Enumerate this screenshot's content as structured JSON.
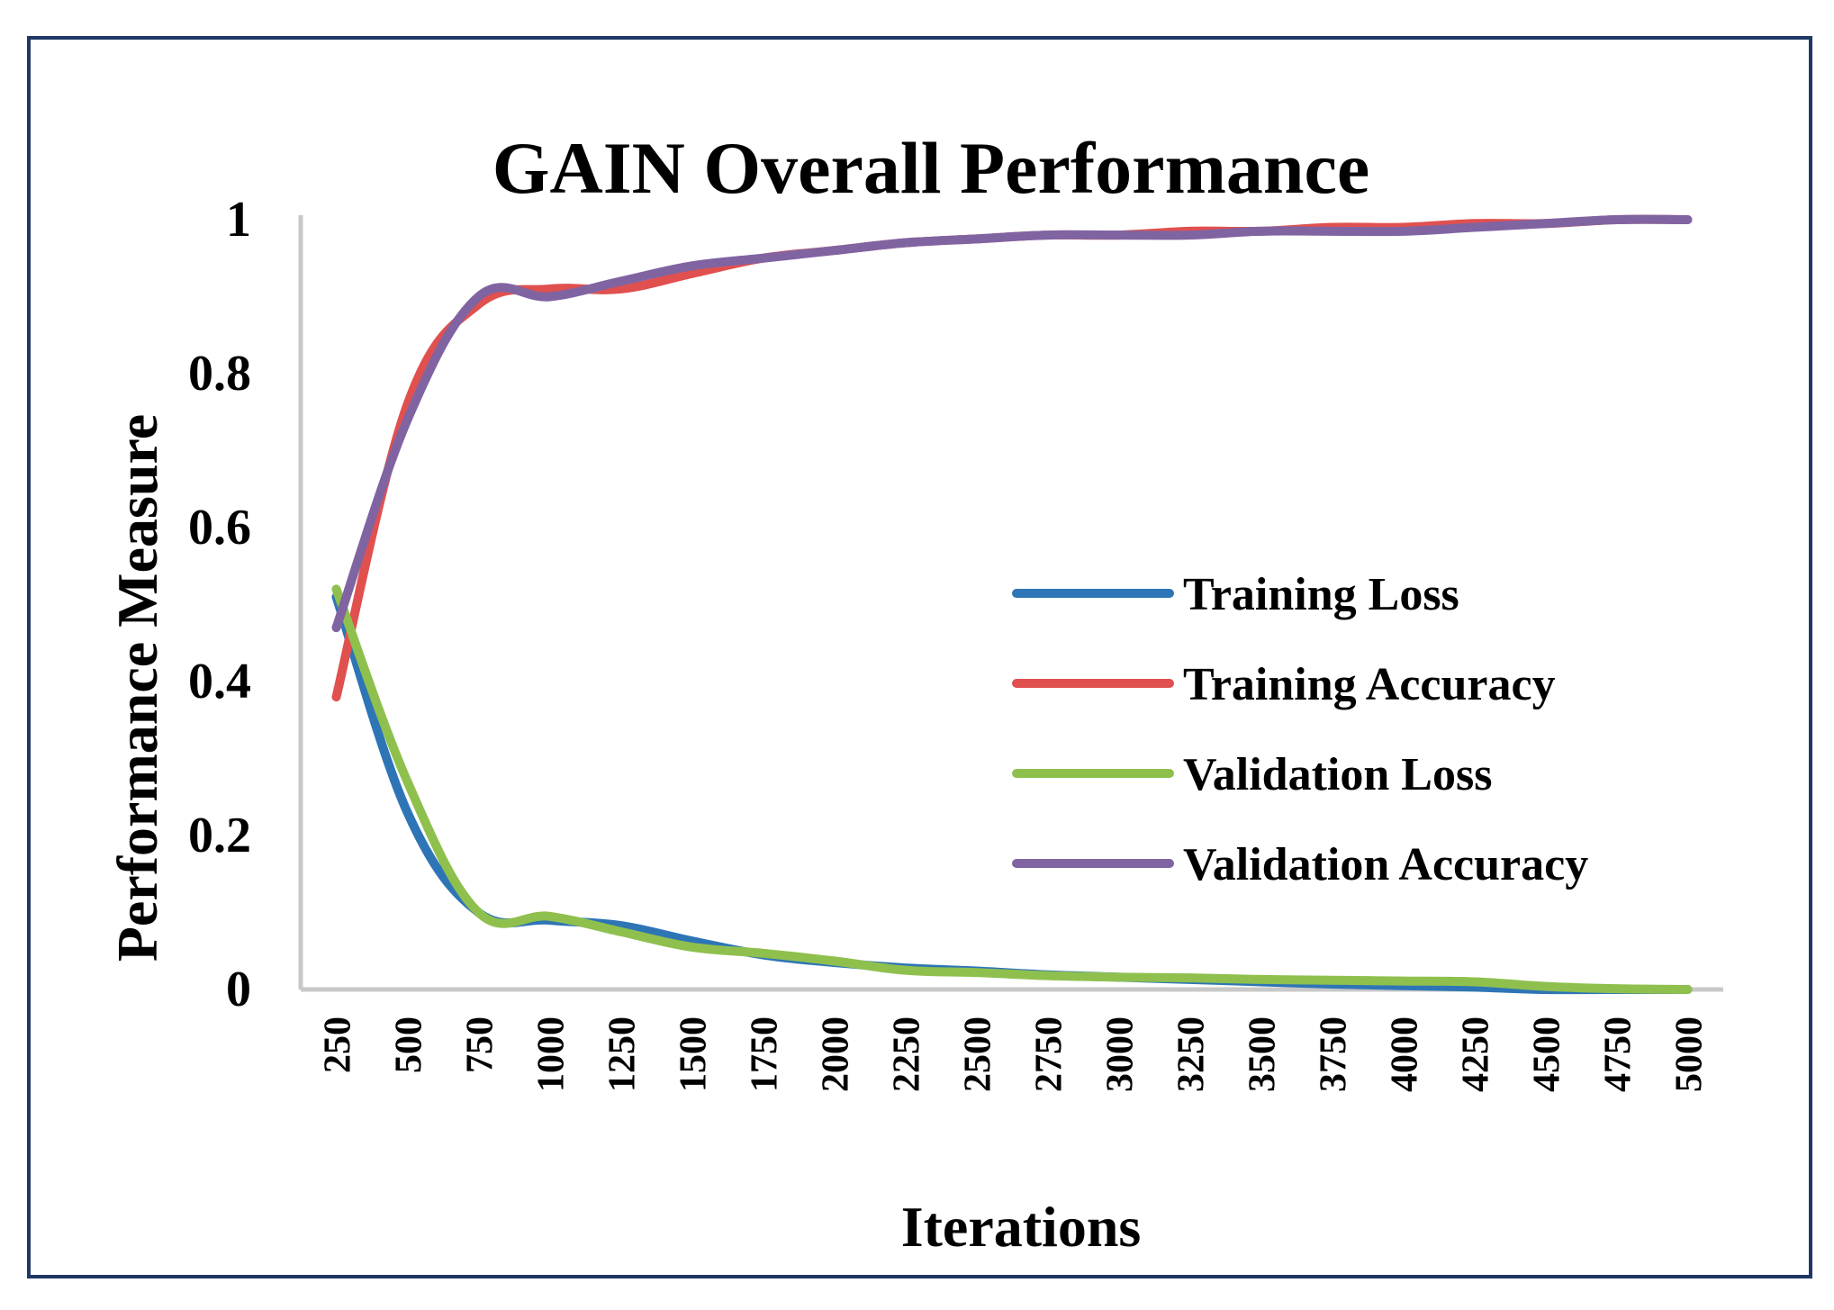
{
  "chart_data": {
    "type": "line",
    "title": "GAIN Overall Performance",
    "xlabel": "Iterations",
    "ylabel": "Performance Measure",
    "categories": [
      "250",
      "500",
      "750",
      "1000",
      "1250",
      "1500",
      "1750",
      "2000",
      "2250",
      "2500",
      "2750",
      "3000",
      "3250",
      "3500",
      "3750",
      "4000",
      "4250",
      "4500",
      "4750",
      "5000"
    ],
    "yticks": [
      "0",
      "0.2",
      "0.4",
      "0.6",
      "0.8",
      "1"
    ],
    "ylim": [
      0,
      1
    ],
    "legend_position": "center-right",
    "series": [
      {
        "name": "Training Loss",
        "color": "#2e75b6",
        "values": [
          0.51,
          0.23,
          0.1,
          0.09,
          0.083,
          0.063,
          0.045,
          0.035,
          0.028,
          0.024,
          0.019,
          0.016,
          0.013,
          0.01,
          0.007,
          0.005,
          0.003,
          0.0,
          0.0,
          0.0
        ]
      },
      {
        "name": "Training Accuracy",
        "color": "#e0504f",
        "values": [
          0.38,
          0.76,
          0.89,
          0.91,
          0.91,
          0.93,
          0.95,
          0.96,
          0.97,
          0.975,
          0.98,
          0.98,
          0.985,
          0.985,
          0.99,
          0.99,
          0.995,
          0.995,
          1.0,
          1.0
        ]
      },
      {
        "name": "Validation Loss",
        "color": "#8fc04e",
        "values": [
          0.52,
          0.27,
          0.1,
          0.095,
          0.075,
          0.055,
          0.047,
          0.037,
          0.025,
          0.022,
          0.018,
          0.016,
          0.015,
          0.013,
          0.012,
          0.011,
          0.01,
          0.004,
          0.001,
          0.0
        ]
      },
      {
        "name": "Validation Accuracy",
        "color": "#8064a2",
        "values": [
          0.47,
          0.74,
          0.9,
          0.9,
          0.92,
          0.94,
          0.95,
          0.96,
          0.97,
          0.975,
          0.98,
          0.98,
          0.98,
          0.985,
          0.985,
          0.985,
          0.99,
          0.995,
          1.0,
          1.0
        ]
      }
    ]
  }
}
